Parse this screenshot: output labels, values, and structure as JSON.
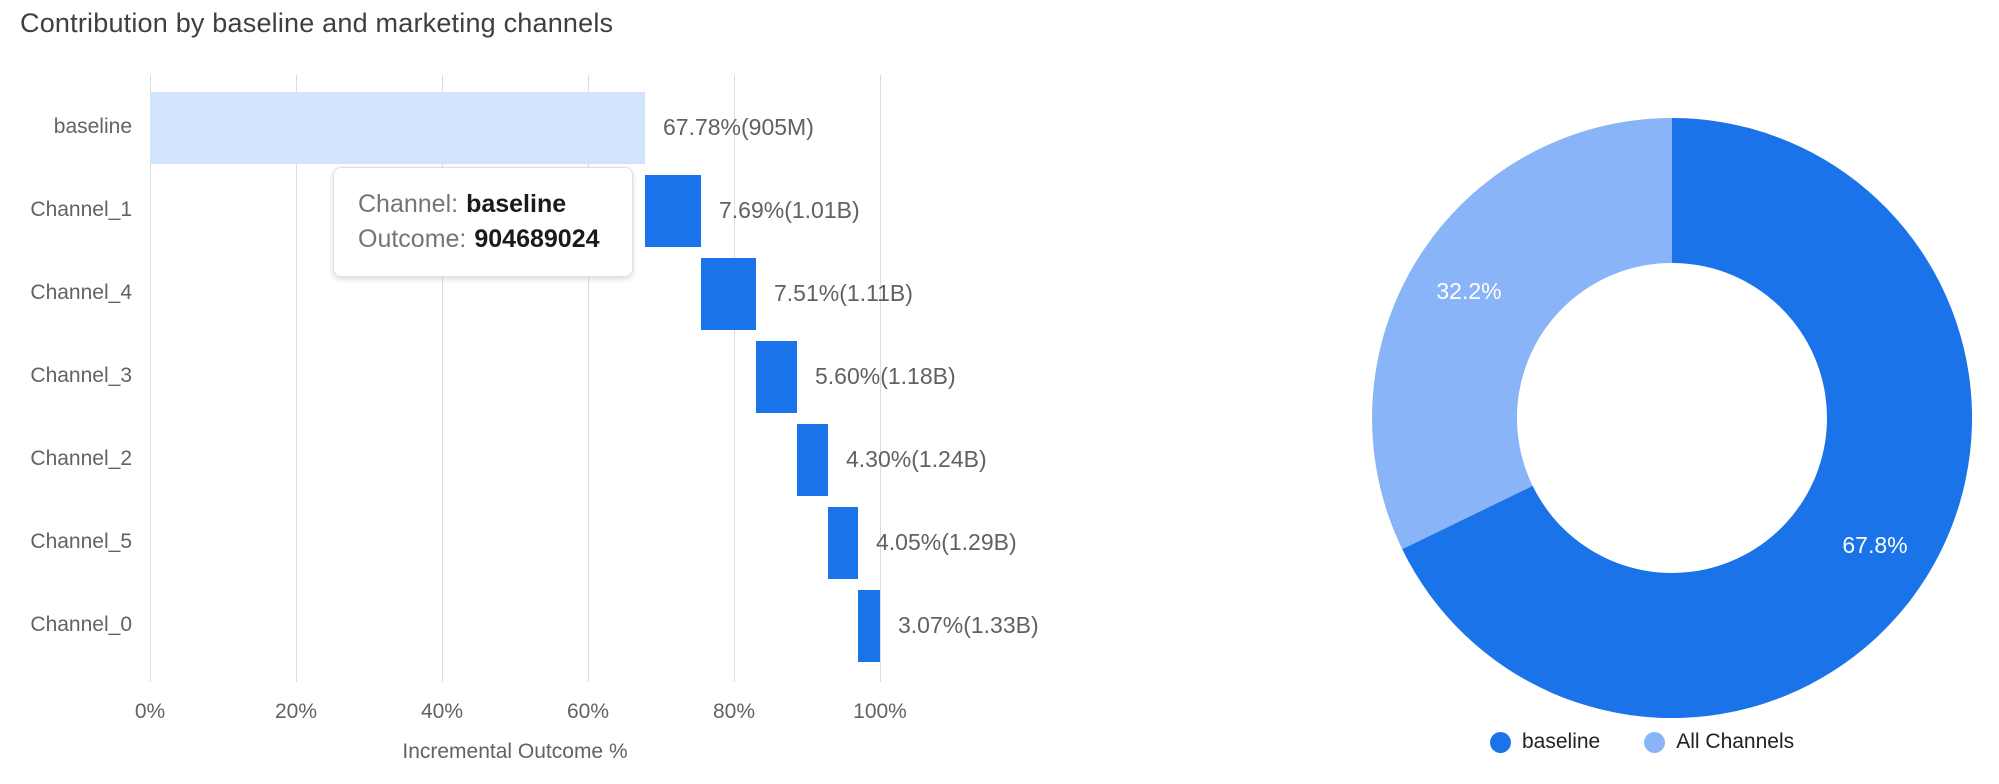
{
  "title": "Contribution by baseline and marketing channels",
  "colors": {
    "primary_blue": "#1A73E8",
    "light_blue": "#8AB4F8",
    "baseline_fill": "#D2E3FC",
    "grid": "#DADCE0",
    "label_gray": "#5F6368",
    "value_gray": "#616161",
    "title_gray": "#3C4043"
  },
  "tooltip": {
    "channel_label": "Channel:",
    "channel_value": "baseline",
    "outcome_label": "Outcome:",
    "outcome_value": "904689024"
  },
  "chart_data": [
    {
      "type": "bar",
      "subtype": "horizontal-waterfall",
      "title": "Contribution by baseline and marketing channels",
      "xlabel": "Incremental Outcome %",
      "ylabel": "",
      "categories": [
        "baseline",
        "Channel_1",
        "Channel_4",
        "Channel_3",
        "Channel_2",
        "Channel_5",
        "Channel_0"
      ],
      "values_pct": [
        67.78,
        7.69,
        7.51,
        5.6,
        4.3,
        4.05,
        3.07
      ],
      "start_pct": [
        0,
        67.78,
        75.47,
        82.98,
        88.58,
        92.88,
        96.93
      ],
      "bar_labels": [
        "67.78%(905M)",
        "7.69%(1.01B)",
        "7.51%(1.11B)",
        "5.60%(1.18B)",
        "4.30%(1.24B)",
        "4.05%(1.29B)",
        "3.07%(1.33B)"
      ],
      "cumulative_outcome": [
        "905M",
        "1.01B",
        "1.11B",
        "1.18B",
        "1.24B",
        "1.29B",
        "1.33B"
      ],
      "bar_colors": [
        "#D2E3FC",
        "#1A73E8",
        "#1A73E8",
        "#1A73E8",
        "#1A73E8",
        "#1A73E8",
        "#1A73E8"
      ],
      "x_ticks": [
        "0%",
        "20%",
        "40%",
        "60%",
        "80%",
        "100%"
      ],
      "x_tick_values": [
        0,
        20,
        40,
        60,
        80,
        100
      ],
      "xlim": [
        0,
        100
      ],
      "grid": "vertical"
    },
    {
      "type": "pie",
      "subtype": "donut",
      "slices": [
        {
          "name": "baseline",
          "pct": 67.8,
          "label": "67.8%",
          "color": "#1A73E8"
        },
        {
          "name": "All Channels",
          "pct": 32.2,
          "label": "32.2%",
          "color": "#8AB4F8"
        }
      ],
      "legend_position": "bottom"
    }
  ]
}
